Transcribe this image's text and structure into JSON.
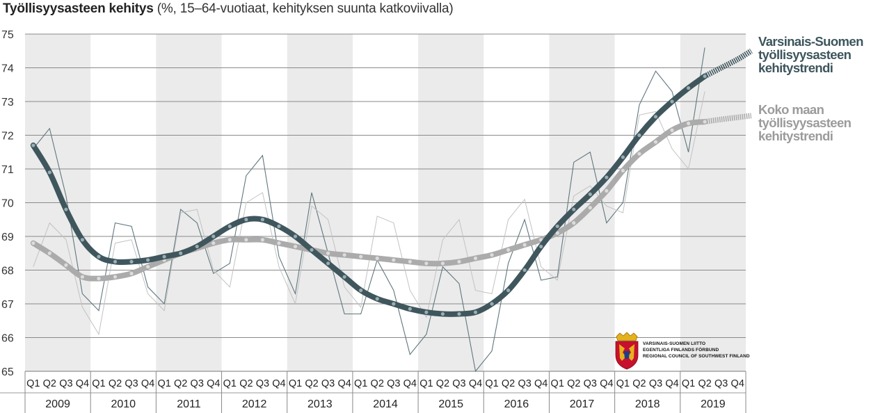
{
  "title": {
    "main": "Työllisyysasteen kehitys",
    "sub": "(%, 15–64-vuotiaat, kehityksen suunta katkoviivalla)"
  },
  "legend": {
    "southwest_lines": [
      "Varsinais-Suomen",
      "työllisyysasteen",
      "kehitystrendi"
    ],
    "country_lines": [
      "Koko maan",
      "työllisyysasteen",
      "kehitystrendi"
    ]
  },
  "logo": {
    "lines": [
      "VARSINAIS-SUOMEN LIITTO",
      "EGENTLIGA FINLANDS FÖRBUND",
      "REGIONAL COUNCIL OF SOUTHWEST FINLAND"
    ]
  },
  "colors": {
    "southwest": "#3f565d",
    "country": "#ababab",
    "band": "#ebebeb",
    "grid": "#8a8a8a"
  },
  "chart_data": {
    "type": "line",
    "ylim": [
      65,
      75
    ],
    "yticks": [
      65,
      66,
      67,
      68,
      69,
      70,
      71,
      72,
      73,
      74,
      75
    ],
    "years": [
      "2009",
      "2010",
      "2011",
      "2012",
      "2013",
      "2014",
      "2015",
      "2016",
      "2017",
      "2018",
      "2019"
    ],
    "quarters": [
      "Q1",
      "Q2",
      "Q3",
      "Q4"
    ],
    "series": [
      {
        "name": "Varsinais-Suomen työllisyysasteen kehitystrendi",
        "kind": "trend",
        "values": [
          71.7,
          70.9,
          69.8,
          68.9,
          68.4,
          68.25,
          68.25,
          68.3,
          68.4,
          68.5,
          68.7,
          69.0,
          69.3,
          69.5,
          69.5,
          69.3,
          69.0,
          68.6,
          68.2,
          67.8,
          67.4,
          67.15,
          67.0,
          66.85,
          66.75,
          66.7,
          66.7,
          66.75,
          67.0,
          67.4,
          68.0,
          68.7,
          69.3,
          69.8,
          70.25,
          70.75,
          71.35,
          72.0,
          72.55,
          73.0,
          73.4,
          73.75
        ],
        "projection": [
          73.75,
          74.0,
          74.25,
          74.5
        ]
      },
      {
        "name": "Koko maan työllisyysasteen kehitystrendi",
        "kind": "trend",
        "values": [
          68.8,
          68.5,
          68.15,
          67.8,
          67.75,
          67.8,
          67.9,
          68.1,
          68.3,
          68.5,
          68.65,
          68.8,
          68.9,
          68.9,
          68.9,
          68.8,
          68.7,
          68.6,
          68.5,
          68.45,
          68.4,
          68.35,
          68.3,
          68.25,
          68.2,
          68.2,
          68.25,
          68.35,
          68.45,
          68.6,
          68.75,
          68.9,
          69.1,
          69.4,
          69.85,
          70.35,
          70.95,
          71.45,
          71.8,
          72.15,
          72.35,
          72.4
        ],
        "projection": [
          72.4,
          72.47,
          72.53,
          72.58
        ]
      },
      {
        "name": "Varsinais-Suomi",
        "kind": "quarterly",
        "values": [
          71.6,
          72.2,
          70.2,
          67.3,
          66.8,
          69.4,
          69.3,
          67.5,
          67.0,
          69.8,
          69.4,
          67.9,
          68.2,
          70.8,
          71.4,
          68.4,
          67.3,
          70.3,
          68.5,
          66.7,
          66.7,
          68.3,
          67.4,
          65.5,
          66.1,
          68.1,
          67.6,
          65.0,
          65.6,
          68.2,
          69.5,
          67.7,
          67.8,
          71.2,
          71.5,
          69.4,
          70.0,
          72.9,
          73.9,
          73.3,
          71.5,
          74.6
        ]
      },
      {
        "name": "Koko maa",
        "kind": "quarterly",
        "values": [
          68.1,
          69.4,
          68.9,
          66.9,
          66.1,
          68.8,
          68.9,
          67.3,
          66.8,
          69.7,
          69.8,
          68.0,
          67.5,
          70.0,
          70.3,
          68.1,
          67.0,
          69.9,
          69.5,
          67.5,
          66.9,
          69.6,
          69.4,
          67.4,
          66.6,
          68.9,
          69.5,
          67.4,
          67.3,
          69.5,
          70.1,
          68.1,
          67.7,
          70.2,
          70.5,
          69.9,
          69.7,
          72.6,
          72.7,
          71.6,
          71.0,
          73.3
        ]
      }
    ]
  }
}
